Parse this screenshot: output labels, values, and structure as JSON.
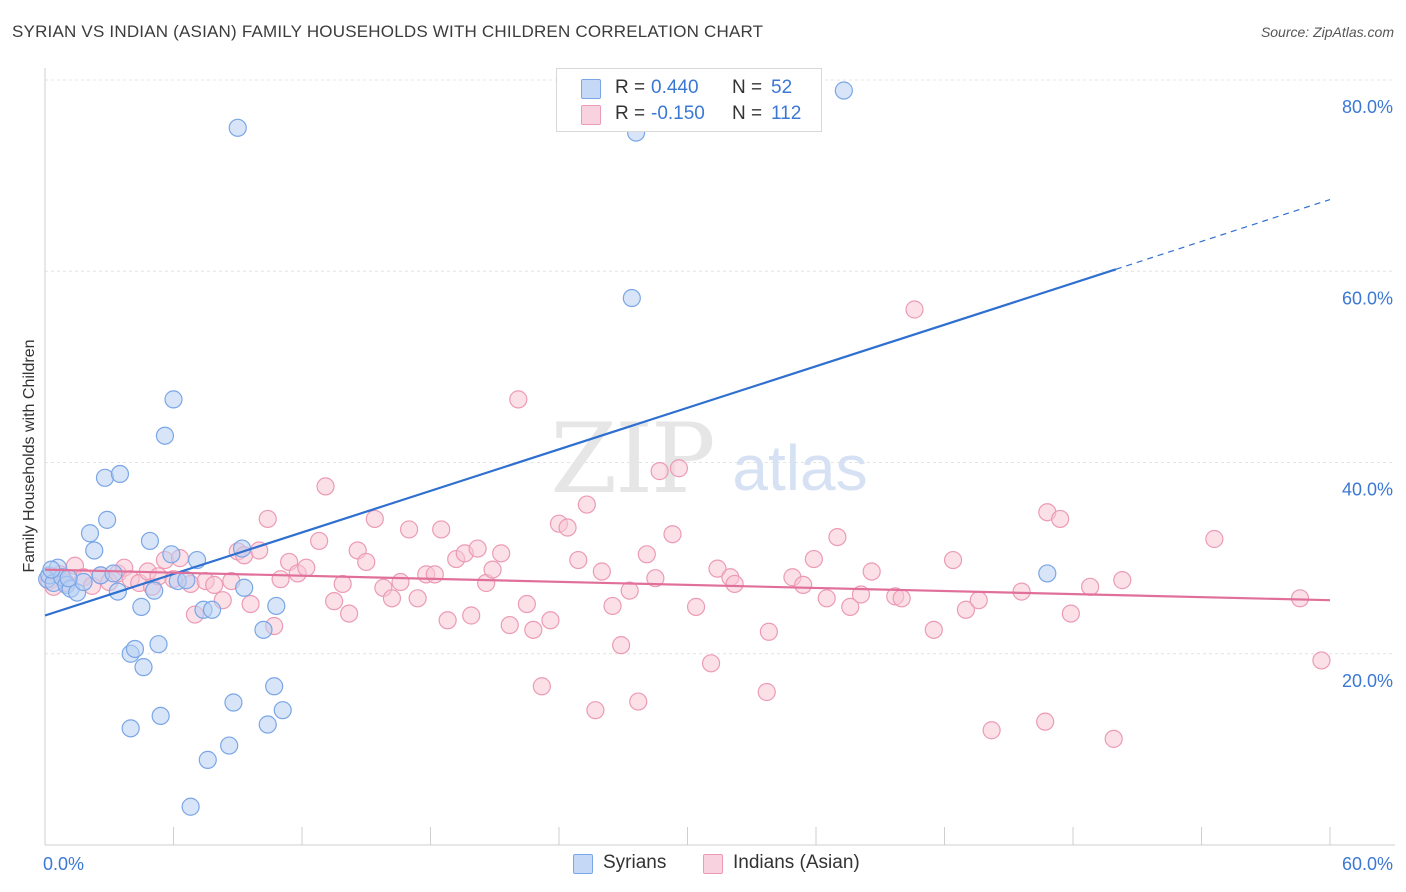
{
  "title": "SYRIAN VS INDIAN (ASIAN) FAMILY HOUSEHOLDS WITH CHILDREN CORRELATION CHART",
  "source": "Source: ZipAtlas.com",
  "watermark": {
    "zip": "ZIP",
    "atlas": "atlas"
  },
  "colors": {
    "syrians_fill": "#b8d0f3",
    "syrians_stroke": "#7aa6e6",
    "syrians_line": "#2f6fd0",
    "indians_fill": "#f7c7d6",
    "indians_stroke": "#ec9bb5",
    "indians_line": "#e0709a",
    "axis_label": "#3b78d4"
  },
  "legend": {
    "r_label": "R =",
    "n_label": "N =",
    "syrians": {
      "r": "0.440",
      "n": "52"
    },
    "indians": {
      "r": "-0.150",
      "n": "112"
    }
  },
  "chart_data": {
    "type": "scatter",
    "title": "SYRIAN VS INDIAN (ASIAN) FAMILY HOUSEHOLDS WITH CHILDREN CORRELATION CHART",
    "xlabel": "",
    "ylabel": "Family Households with Children",
    "xlim": [
      0,
      60
    ],
    "ylim": [
      0,
      80
    ],
    "x_tick_labels": [
      "0.0%",
      "60.0%"
    ],
    "y_tick_labels": [
      "20.0%",
      "40.0%",
      "60.0%",
      "80.0%"
    ],
    "y_ticks": [
      20,
      40,
      60,
      80
    ],
    "grid": true,
    "legend_position": "bottom",
    "series": [
      {
        "name": "Syrians",
        "r": 0.44,
        "n": 52,
        "trend": {
          "x": [
            0,
            50
          ],
          "y": [
            24.0,
            60.2
          ],
          "dashed_to": [
            60,
            67.5
          ]
        },
        "points": [
          [
            0.1,
            27.8
          ],
          [
            0.2,
            28.2
          ],
          [
            0.4,
            27.4
          ],
          [
            0.6,
            29.0
          ],
          [
            0.8,
            28.0
          ],
          [
            1.0,
            27.2
          ],
          [
            1.2,
            26.8
          ],
          [
            1.5,
            26.4
          ],
          [
            1.8,
            27.5
          ],
          [
            2.1,
            32.6
          ],
          [
            2.3,
            30.8
          ],
          [
            2.6,
            28.2
          ],
          [
            2.8,
            38.4
          ],
          [
            2.9,
            34.0
          ],
          [
            3.2,
            28.4
          ],
          [
            3.4,
            26.5
          ],
          [
            3.5,
            38.8
          ],
          [
            4.0,
            20.0
          ],
          [
            4.0,
            12.2
          ],
          [
            4.2,
            20.5
          ],
          [
            4.5,
            24.9
          ],
          [
            4.6,
            18.6
          ],
          [
            4.9,
            31.8
          ],
          [
            5.1,
            26.6
          ],
          [
            5.3,
            21.0
          ],
          [
            5.4,
            13.5
          ],
          [
            5.6,
            42.8
          ],
          [
            5.9,
            30.4
          ],
          [
            6.0,
            46.6
          ],
          [
            6.2,
            27.6
          ],
          [
            6.6,
            27.7
          ],
          [
            6.8,
            4.0
          ],
          [
            7.1,
            29.8
          ],
          [
            7.4,
            24.6
          ],
          [
            7.6,
            8.9
          ],
          [
            7.8,
            24.6
          ],
          [
            8.6,
            10.4
          ],
          [
            8.8,
            14.9
          ],
          [
            9.0,
            75.0
          ],
          [
            9.2,
            31.0
          ],
          [
            9.3,
            26.9
          ],
          [
            10.2,
            22.5
          ],
          [
            10.4,
            12.6
          ],
          [
            10.7,
            16.6
          ],
          [
            10.8,
            25.0
          ],
          [
            11.1,
            14.1
          ],
          [
            27.4,
            57.2
          ],
          [
            27.6,
            74.5
          ],
          [
            37.3,
            78.9
          ],
          [
            46.8,
            28.4
          ],
          [
            0.3,
            28.8
          ],
          [
            1.1,
            27.9
          ]
        ]
      },
      {
        "name": "Indians (Asian)",
        "r": -0.15,
        "n": 112,
        "trend": {
          "x": [
            0,
            60
          ],
          "y": [
            28.8,
            25.6
          ]
        },
        "points": [
          [
            0.2,
            27.6
          ],
          [
            0.4,
            27.0
          ],
          [
            0.7,
            28.3
          ],
          [
            1.0,
            27.4
          ],
          [
            1.4,
            29.2
          ],
          [
            1.8,
            28.0
          ],
          [
            2.2,
            27.1
          ],
          [
            2.6,
            28.2
          ],
          [
            3.0,
            27.5
          ],
          [
            3.4,
            28.4
          ],
          [
            3.7,
            29.0
          ],
          [
            4.0,
            27.8
          ],
          [
            4.4,
            27.4
          ],
          [
            4.8,
            28.6
          ],
          [
            5.0,
            27.0
          ],
          [
            5.3,
            28.1
          ],
          [
            5.6,
            29.8
          ],
          [
            6.0,
            27.8
          ],
          [
            6.3,
            30.0
          ],
          [
            6.8,
            27.3
          ],
          [
            7.0,
            24.1
          ],
          [
            7.5,
            27.6
          ],
          [
            7.9,
            27.2
          ],
          [
            8.3,
            25.6
          ],
          [
            8.7,
            27.6
          ],
          [
            9.0,
            30.7
          ],
          [
            9.3,
            30.3
          ],
          [
            9.6,
            25.2
          ],
          [
            10.0,
            30.8
          ],
          [
            10.4,
            34.1
          ],
          [
            10.7,
            22.9
          ],
          [
            11.0,
            27.8
          ],
          [
            11.4,
            29.6
          ],
          [
            11.8,
            28.4
          ],
          [
            12.2,
            29.0
          ],
          [
            12.8,
            31.8
          ],
          [
            13.1,
            37.5
          ],
          [
            13.5,
            25.5
          ],
          [
            13.9,
            27.3
          ],
          [
            14.2,
            24.2
          ],
          [
            14.6,
            30.8
          ],
          [
            15.0,
            29.6
          ],
          [
            15.4,
            34.1
          ],
          [
            15.8,
            26.9
          ],
          [
            16.2,
            25.8
          ],
          [
            16.6,
            27.5
          ],
          [
            17.0,
            33.0
          ],
          [
            17.4,
            25.8
          ],
          [
            17.8,
            28.3
          ],
          [
            18.2,
            28.3
          ],
          [
            18.5,
            33.0
          ],
          [
            18.8,
            23.5
          ],
          [
            19.2,
            29.9
          ],
          [
            19.6,
            30.5
          ],
          [
            19.9,
            24.0
          ],
          [
            20.2,
            31.0
          ],
          [
            20.6,
            27.4
          ],
          [
            20.9,
            28.8
          ],
          [
            21.3,
            30.5
          ],
          [
            21.7,
            23.0
          ],
          [
            22.1,
            46.6
          ],
          [
            22.5,
            25.2
          ],
          [
            22.8,
            22.5
          ],
          [
            23.2,
            16.6
          ],
          [
            23.6,
            23.5
          ],
          [
            24.0,
            33.6
          ],
          [
            24.4,
            33.2
          ],
          [
            24.9,
            29.8
          ],
          [
            25.3,
            35.6
          ],
          [
            25.7,
            14.1
          ],
          [
            26.0,
            28.6
          ],
          [
            26.5,
            25.0
          ],
          [
            26.9,
            20.9
          ],
          [
            27.3,
            26.6
          ],
          [
            27.7,
            15.0
          ],
          [
            28.1,
            30.4
          ],
          [
            28.5,
            27.9
          ],
          [
            28.7,
            39.1
          ],
          [
            29.3,
            32.5
          ],
          [
            29.6,
            39.4
          ],
          [
            30.4,
            24.9
          ],
          [
            31.1,
            19.0
          ],
          [
            31.4,
            28.9
          ],
          [
            32.0,
            28.0
          ],
          [
            32.2,
            27.3
          ],
          [
            33.8,
            22.3
          ],
          [
            33.7,
            16.0
          ],
          [
            34.9,
            28.0
          ],
          [
            35.4,
            27.2
          ],
          [
            35.9,
            29.9
          ],
          [
            36.5,
            25.8
          ],
          [
            37.0,
            32.2
          ],
          [
            37.6,
            24.9
          ],
          [
            38.1,
            26.2
          ],
          [
            38.6,
            28.6
          ],
          [
            39.7,
            26.0
          ],
          [
            40.0,
            25.8
          ],
          [
            40.6,
            56.0
          ],
          [
            41.5,
            22.5
          ],
          [
            42.4,
            29.8
          ],
          [
            43.0,
            24.6
          ],
          [
            43.6,
            25.6
          ],
          [
            44.2,
            12.0
          ],
          [
            45.6,
            26.5
          ],
          [
            46.7,
            12.9
          ],
          [
            46.8,
            34.8
          ],
          [
            47.4,
            34.1
          ],
          [
            47.9,
            24.2
          ],
          [
            48.8,
            27.0
          ],
          [
            49.9,
            11.1
          ],
          [
            50.3,
            27.7
          ],
          [
            54.6,
            32.0
          ],
          [
            58.6,
            25.8
          ],
          [
            59.6,
            19.3
          ]
        ]
      }
    ]
  }
}
